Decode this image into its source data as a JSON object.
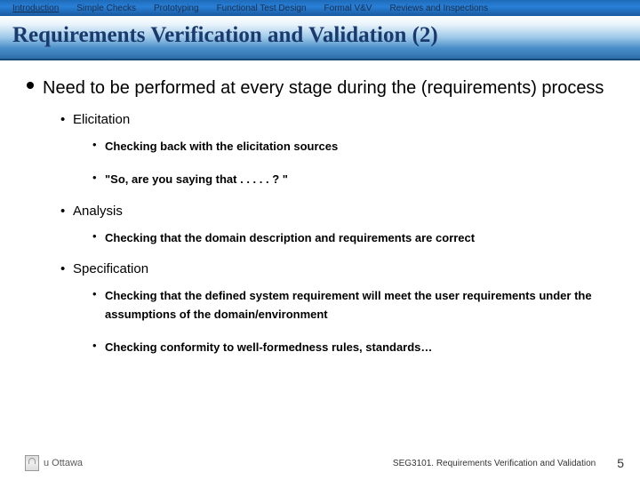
{
  "nav": {
    "items": [
      {
        "label": "Introduction",
        "active": true
      },
      {
        "label": "Simple Checks",
        "active": false
      },
      {
        "label": "Prototyping",
        "active": false
      },
      {
        "label": "Functional Test Design",
        "active": false
      },
      {
        "label": "Formal V&V",
        "active": false
      },
      {
        "label": "Reviews and Inspections",
        "active": false
      }
    ]
  },
  "title": "Requirements Verification and Validation (2)",
  "main": {
    "text": "Need to be performed at every stage during the (requirements) process",
    "subs": [
      {
        "label": "Elicitation",
        "items": [
          "Checking back with the elicitation sources",
          "\"So, are you saying that . . . . . ? \""
        ]
      },
      {
        "label": "Analysis",
        "items": [
          "Checking that the domain description and requirements are correct"
        ]
      },
      {
        "label": "Specification",
        "items": [
          "Checking that the defined system requirement will meet the user requirements under the assumptions of the domain/environment",
          "Checking conformity to well-formedness rules, standards…"
        ]
      }
    ]
  },
  "footer": {
    "logo_text": "u Ottawa",
    "course": "SEG3101.  Requirements Verification and Validation",
    "page": "5"
  }
}
